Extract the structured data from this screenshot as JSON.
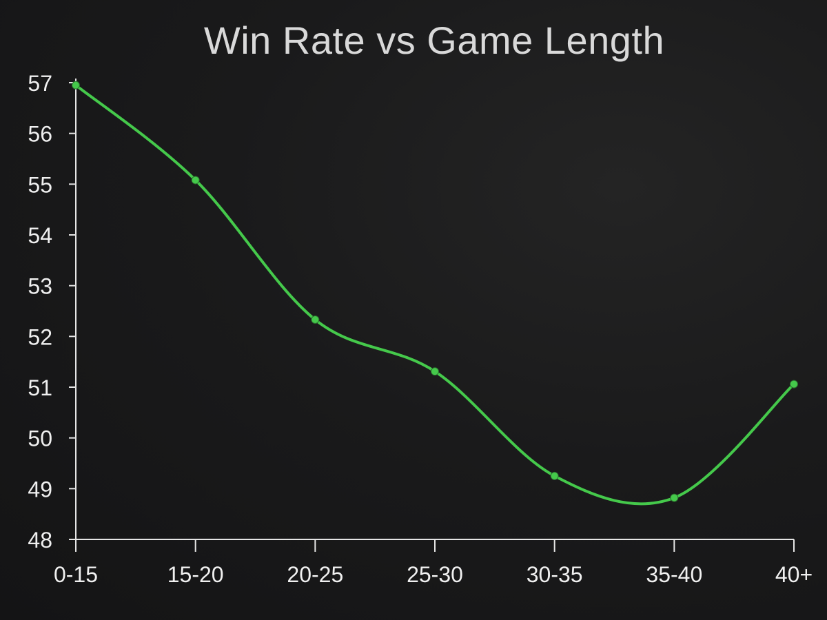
{
  "chart_data": {
    "type": "line",
    "title": "Win Rate vs Game Length",
    "xlabel": "",
    "ylabel": "",
    "categories": [
      "0-15",
      "15-20",
      "20-25",
      "25-30",
      "30-35",
      "35-40",
      "40+"
    ],
    "series": [
      {
        "values": [
          56.95,
          55.08,
          52.33,
          51.31,
          49.25,
          48.82,
          51.06
        ],
        "color": "#45c94b"
      }
    ],
    "ylim": [
      48,
      57
    ],
    "yticks": [
      48,
      49,
      50,
      51,
      52,
      53,
      54,
      55,
      56,
      57
    ],
    "grid": false,
    "legend": "none",
    "colors": {
      "axis": "#e6e6e6",
      "tick_text": "#f0f0f0",
      "title_text": "#d9d9d9",
      "line": "#45c94b",
      "point": "#45c94b"
    }
  }
}
